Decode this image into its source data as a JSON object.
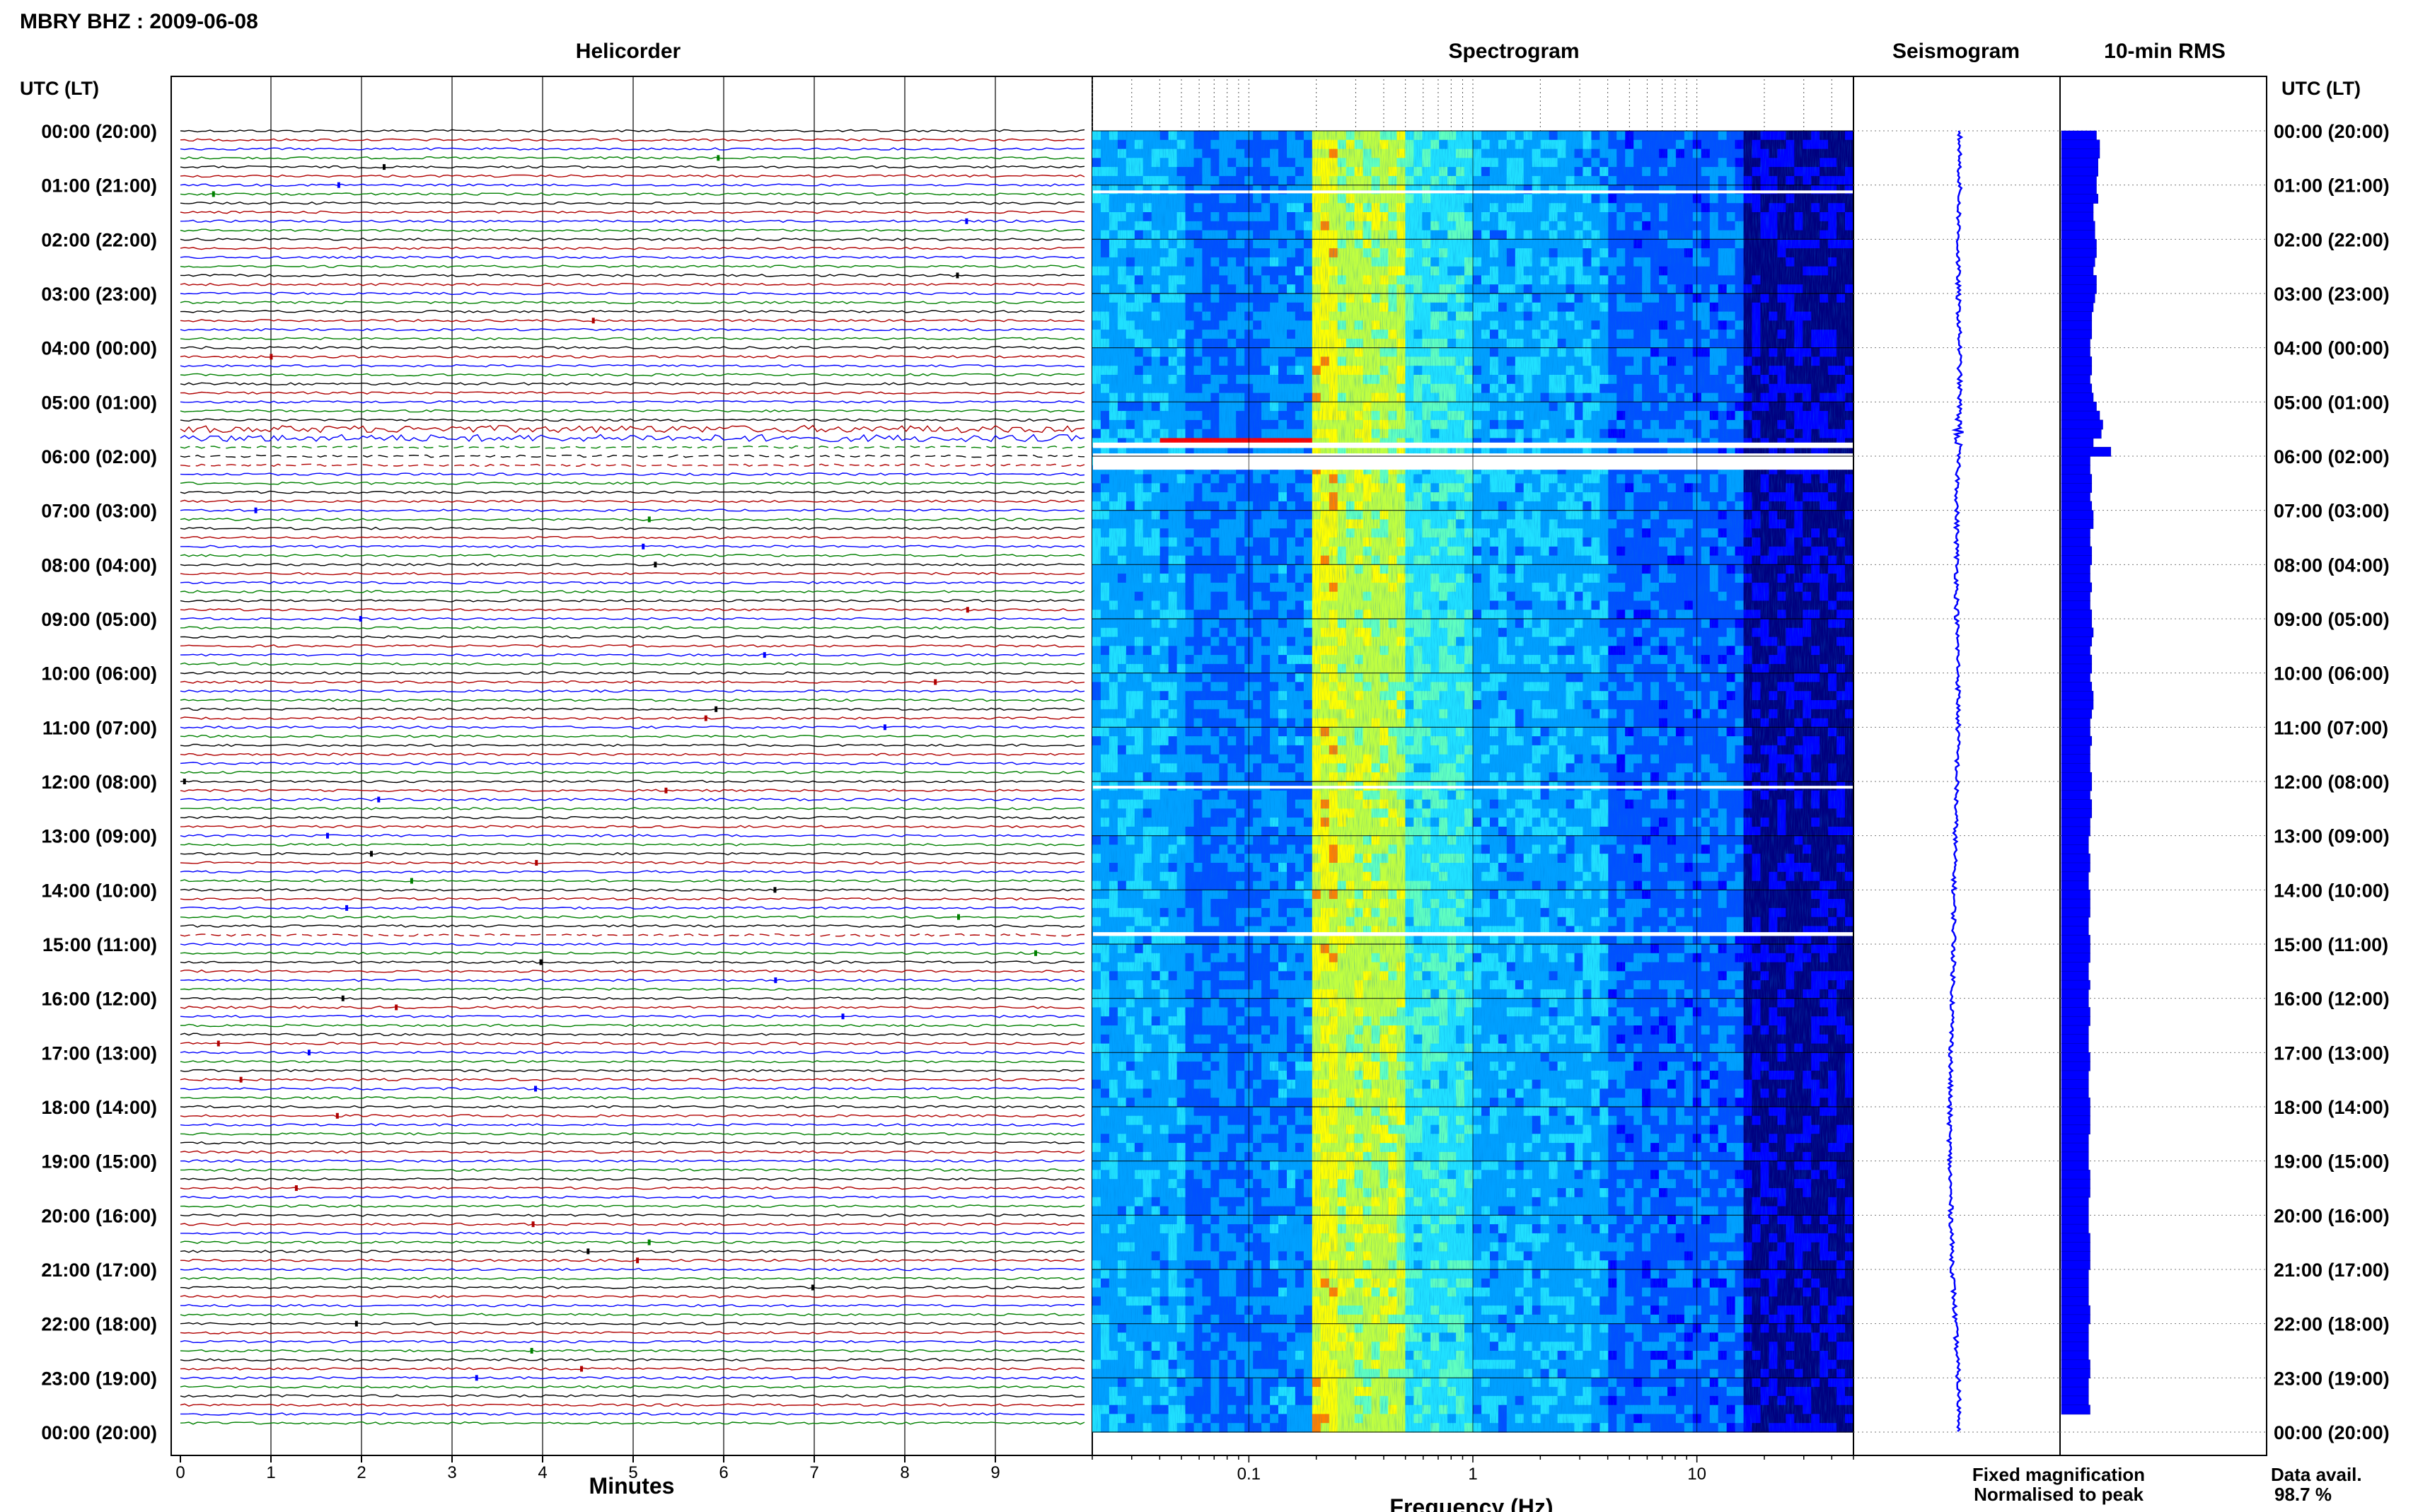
{
  "header": {
    "title": "MBRY BHZ : 2009-06-08"
  },
  "panels": {
    "helicorder": "Helicorder",
    "spectrogram": "Spectrogram",
    "seismogram": "Seismogram",
    "rms": "10-min RMS"
  },
  "axes": {
    "time_header_left": "UTC (LT)",
    "time_header_right": "UTC (LT)",
    "time_labels": [
      "00:00 (20:00)",
      "01:00 (21:00)",
      "02:00 (22:00)",
      "03:00 (23:00)",
      "04:00 (00:00)",
      "05:00 (01:00)",
      "06:00 (02:00)",
      "07:00 (03:00)",
      "08:00 (04:00)",
      "09:00 (05:00)",
      "10:00 (06:00)",
      "11:00 (07:00)",
      "12:00 (08:00)",
      "13:00 (09:00)",
      "14:00 (10:00)",
      "15:00 (11:00)",
      "16:00 (12:00)",
      "17:00 (13:00)",
      "18:00 (14:00)",
      "19:00 (15:00)",
      "20:00 (16:00)",
      "21:00 (17:00)",
      "22:00 (18:00)",
      "23:00 (19:00)",
      "00:00 (20:00)"
    ],
    "minutes_label": "Minutes",
    "minutes_ticks": [
      "0",
      "1",
      "2",
      "3",
      "4",
      "5",
      "6",
      "7",
      "8",
      "9"
    ],
    "frequency_label": "Frequency (Hz)",
    "frequency_ticks": [
      "0.1",
      "1",
      "10"
    ]
  },
  "legend": {
    "fixed": "Fixed magnification",
    "normalised": "Normalised to peak",
    "fixed_color": "#0000ff",
    "normalised_color": "#ff0000"
  },
  "data_avail": {
    "label": "Data avail.",
    "value": "98.7 %"
  },
  "chart_data": {
    "type": "heatmap",
    "trace_colors": [
      "#000000",
      "#b00000",
      "#0000ff",
      "#008000"
    ],
    "spectrogram_colormap": [
      "#00007f",
      "#0000ff",
      "#0050ff",
      "#00a0ff",
      "#20e0ff",
      "#60ffc0",
      "#c0ff40",
      "#ffff00",
      "#ff8000",
      "#ff0000"
    ],
    "frequency_range_hz": [
      0.02,
      50
    ],
    "minutes_range": [
      0,
      10
    ],
    "hours_range": [
      0,
      24
    ],
    "gaps_hours": [
      [
        1.1,
        1.15
      ],
      [
        5.75,
        5.85
      ],
      [
        5.95,
        6.25
      ],
      [
        12.08,
        12.13
      ],
      [
        14.78,
        14.85
      ]
    ],
    "rms_10min": [
      1.1,
      1.2,
      1.2,
      1.15,
      1.15,
      1.1,
      1.1,
      1.15,
      1.0,
      1.0,
      1.05,
      1.05,
      1.1,
      1.1,
      1.05,
      1.0,
      1.1,
      1.1,
      1.05,
      1.0,
      0.95,
      0.95,
      0.95,
      0.9,
      0.9,
      0.95,
      0.95,
      0.9,
      0.95,
      1.0,
      1.1,
      1.2,
      1.3,
      1.25,
      1.0,
      1.55,
      0.9,
      0.9,
      0.95,
      0.95,
      0.9,
      0.95,
      1.0,
      1.0,
      0.9,
      0.9,
      0.95,
      0.95,
      0.9,
      0.9,
      0.95,
      0.9,
      0.9,
      0.95,
      0.95,
      1.0,
      0.95,
      0.9,
      0.95,
      0.95,
      0.9,
      0.95,
      1.0,
      1.0,
      0.95,
      0.9,
      0.9,
      0.95,
      0.9,
      0.9,
      0.9,
      0.95,
      0.95,
      0.9,
      0.95,
      0.95,
      0.9,
      0.9,
      0.85,
      0.85,
      0.9,
      0.9,
      0.85,
      0.85,
      0.9,
      0.9,
      0.9,
      0.85,
      0.85,
      0.9,
      0.9,
      0.9,
      0.85,
      0.85,
      0.9,
      0.85,
      0.85,
      0.9,
      0.9,
      0.85,
      0.85,
      0.85,
      0.9,
      0.9,
      0.85,
      0.85,
      0.85,
      0.9,
      0.9,
      0.9,
      0.9,
      0.85,
      0.85,
      0.85,
      0.85,
      0.9,
      0.9,
      0.9,
      0.85,
      0.85,
      0.85,
      0.85,
      0.9,
      0.9,
      0.9,
      0.9,
      0.85,
      0.85,
      0.85,
      0.85,
      0.9,
      0.9,
      0.85,
      0.85,
      0.85,
      0.85,
      0.9,
      0.9,
      0.85,
      0.85,
      0.85,
      0.9
    ],
    "seismogram_offset": [
      0.0,
      0.0,
      -0.05,
      -0.05,
      0.0,
      0.0,
      -0.05,
      -0.1,
      -0.1,
      -0.1,
      -0.05,
      -0.05,
      -0.1,
      -0.15,
      -0.2,
      -0.2,
      -0.25,
      -0.3,
      -0.35,
      -0.35,
      -0.3,
      -0.25,
      -0.15,
      -0.05,
      0.0
    ]
  }
}
